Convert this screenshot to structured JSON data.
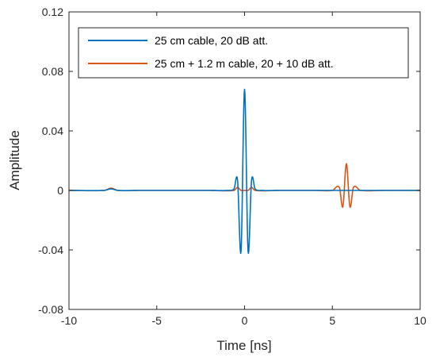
{
  "chart_data": {
    "type": "line",
    "title": "",
    "xlabel": "Time [ns]",
    "ylabel": "Amplitude",
    "xlim": [
      -10,
      10
    ],
    "ylim": [
      -0.08,
      0.12
    ],
    "xticks": [
      -10,
      -5,
      0,
      5,
      10
    ],
    "xtick_labels": [
      "-10",
      "-5",
      "0",
      "5",
      "10"
    ],
    "yticks": [
      -0.08,
      -0.04,
      0,
      0.04,
      0.08,
      0.12
    ],
    "ytick_labels": [
      "-0.08",
      "-0.04",
      "0",
      "0.04",
      "0.08",
      "0.12"
    ],
    "grid": false,
    "legend_position": "top",
    "series": [
      {
        "name": "25 cm cable, 20 dB att.",
        "color": "#0072BD",
        "x": [
          -10,
          -8.0,
          -7.6,
          -7.2,
          -6.0,
          -5.0,
          -4.0,
          -3.0,
          -2.0,
          -1.0,
          -0.6,
          -0.4,
          -0.2,
          0.0,
          0.2,
          0.4,
          0.6,
          1.0,
          2.0,
          3.0,
          4.0,
          5.0,
          6.0,
          7.0,
          8.0,
          9.0,
          10
        ],
        "values": [
          0,
          0.0,
          0.001,
          0.0,
          0.0,
          0.0,
          0.0,
          0.0,
          0.0,
          0.0,
          0.001,
          0.007,
          -0.041,
          0.068,
          -0.041,
          0.007,
          0.001,
          0.0,
          0.0,
          0.0,
          0.0,
          0.0,
          0.0,
          0.0,
          0.0,
          0.0,
          0
        ]
      },
      {
        "name": "25 cm + 1.2 m cable, 20 + 10 dB att.",
        "color": "#D95319",
        "x": [
          -10,
          -8.0,
          -7.6,
          -7.2,
          -6.0,
          -4.0,
          -2.0,
          -0.6,
          -0.4,
          -0.2,
          0.0,
          0.2,
          0.4,
          0.6,
          2.0,
          4.0,
          5.0,
          5.4,
          5.6,
          5.8,
          6.0,
          6.2,
          6.6,
          8.0,
          10
        ],
        "values": [
          0,
          0.0,
          0.0015,
          0.0,
          0.0,
          0.0,
          0.0,
          0.0,
          0.002,
          0.0,
          0.0,
          0.0,
          0.002,
          0.0,
          0.0,
          0.0,
          0.0,
          0.002,
          -0.011,
          0.018,
          -0.011,
          0.002,
          0.0,
          0.0,
          0
        ]
      }
    ]
  }
}
